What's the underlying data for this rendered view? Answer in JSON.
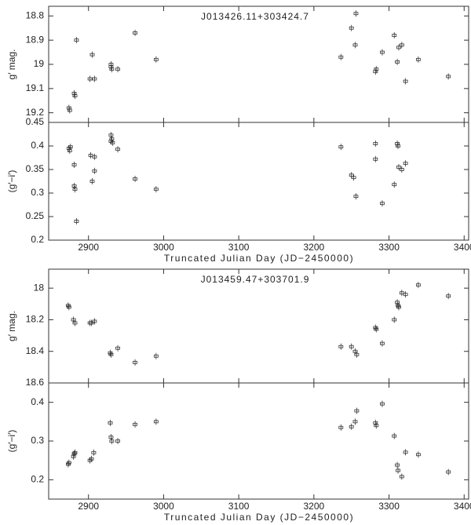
{
  "chart_data": [
    {
      "type": "scatter",
      "title": "J013426.11+303424.7",
      "ylabel": "g′ mag.",
      "color": "#333333",
      "xlim": [
        2847,
        3406
      ],
      "xticks": [
        2900,
        3000,
        3100,
        3200,
        3300,
        3400
      ],
      "ylim": [
        19.24,
        18.76
      ],
      "yticks": [
        18.8,
        18.9,
        19,
        19.1,
        19.2
      ],
      "x": [
        2874,
        2875,
        2881,
        2882,
        2884,
        2902,
        2905,
        2908,
        2930,
        2930,
        2931,
        2939,
        2962,
        2990,
        3236,
        3250,
        3256,
        3255,
        3282,
        3283,
        3291,
        3307,
        3311,
        3313,
        3317,
        3322,
        3339,
        3379
      ],
      "values": [
        19.18,
        19.19,
        19.12,
        19.13,
        18.9,
        19.06,
        18.96,
        19.06,
        19.0,
        19.01,
        19.02,
        19.02,
        18.87,
        18.98,
        18.97,
        18.85,
        18.79,
        18.92,
        19.03,
        19.02,
        18.95,
        18.88,
        18.99,
        18.93,
        18.92,
        19.07,
        18.98,
        19.05
      ]
    },
    {
      "type": "scatter",
      "ylabel": "(g′−i′)",
      "xlabel": "Truncated Julian Day (JD−2450000)",
      "color": "#333333",
      "xlim": [
        2847,
        3406
      ],
      "xticks": [
        2900,
        3000,
        3100,
        3200,
        3300,
        3400
      ],
      "ylim": [
        0.2,
        0.45
      ],
      "yticks": [
        0.2,
        0.25,
        0.3,
        0.35,
        0.4,
        0.45
      ],
      "x": [
        2874,
        2875,
        2876,
        2881,
        2881,
        2882,
        2884,
        2903,
        2905,
        2908,
        2908,
        2930,
        2930,
        2931,
        2932,
        2939,
        2962,
        2990,
        3236,
        3250,
        3253,
        3256,
        3282,
        3282,
        3291,
        3307,
        3311,
        3312,
        3313,
        3317,
        3322
      ],
      "values": [
        0.395,
        0.39,
        0.398,
        0.36,
        0.315,
        0.308,
        0.24,
        0.38,
        0.325,
        0.347,
        0.377,
        0.423,
        0.41,
        0.415,
        0.407,
        0.393,
        0.33,
        0.308,
        0.398,
        0.338,
        0.333,
        0.293,
        0.405,
        0.372,
        0.278,
        0.318,
        0.405,
        0.4,
        0.355,
        0.35,
        0.363
      ]
    },
    {
      "type": "scatter",
      "title": "J013459.47+303701.9",
      "ylabel": "g′ mag.",
      "color": "#333333",
      "xlim": [
        2847,
        3406
      ],
      "xticks": [
        2900,
        3000,
        3100,
        3200,
        3300,
        3400
      ],
      "ylim": [
        18.6,
        17.88
      ],
      "yticks": [
        18,
        18.2,
        18.4,
        18.6
      ],
      "x": [
        2873,
        2874,
        2880,
        2882,
        2902,
        2904,
        2908,
        2929,
        2930,
        2939,
        2962,
        2990,
        3236,
        3250,
        3255,
        3257,
        3282,
        3283,
        3291,
        3307,
        3311,
        3312,
        3313,
        3317,
        3322,
        3339,
        3379
      ],
      "values": [
        18.11,
        18.12,
        18.2,
        18.22,
        18.22,
        18.22,
        18.21,
        18.41,
        18.42,
        18.38,
        18.47,
        18.43,
        18.37,
        18.37,
        18.4,
        18.42,
        18.25,
        18.26,
        18.35,
        18.2,
        18.09,
        18.11,
        18.12,
        18.03,
        18.04,
        17.98,
        18.05
      ]
    },
    {
      "type": "scatter",
      "ylabel": "(g′−i′)",
      "xlabel": "Truncated Julian Day (JD−2450000)",
      "color": "#333333",
      "xlim": [
        2847,
        3406
      ],
      "xticks": [
        2900,
        3000,
        3100,
        3200,
        3300,
        3400
      ],
      "ylim": [
        0.15,
        0.45
      ],
      "yticks": [
        0.2,
        0.3,
        0.4
      ],
      "x": [
        2873,
        2874,
        2880,
        2881,
        2882,
        2902,
        2904,
        2907,
        2929,
        2930,
        2931,
        2939,
        2962,
        2990,
        3236,
        3250,
        3255,
        3257,
        3282,
        3283,
        3291,
        3307,
        3311,
        3312,
        3317,
        3322,
        3339,
        3379
      ],
      "values": [
        0.24,
        0.244,
        0.26,
        0.267,
        0.27,
        0.25,
        0.254,
        0.27,
        0.347,
        0.31,
        0.3,
        0.3,
        0.343,
        0.35,
        0.335,
        0.337,
        0.35,
        0.378,
        0.347,
        0.34,
        0.396,
        0.313,
        0.238,
        0.224,
        0.208,
        0.271,
        0.265,
        0.22
      ]
    }
  ]
}
